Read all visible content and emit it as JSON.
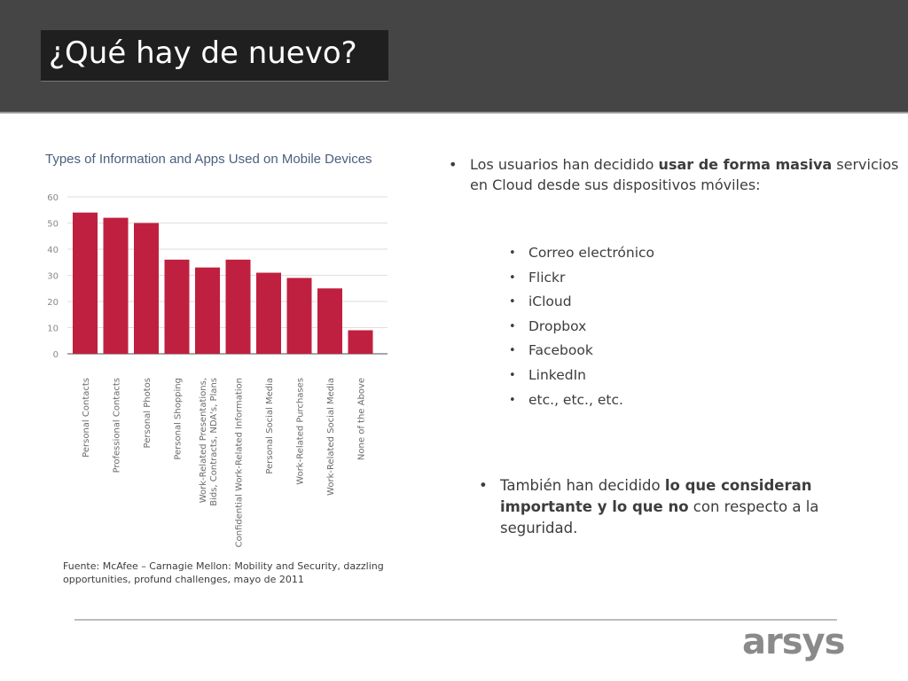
{
  "slide": {
    "title": "¿Qué hay de nuevo?"
  },
  "chart_data": {
    "type": "bar",
    "title": "Types of Information and Apps Used on Mobile Devices",
    "categories": [
      "Personal Contacts",
      "Professional Contacts",
      "Personal Photos",
      "Personal Shopping",
      "Work-Related Presentations,\nBids, Contracts, NDA's, Plans",
      "Confidential Work-Related Information",
      "Personal Social Media",
      "Work-Related Purchases",
      "Work-Related Social Media",
      "None of the Above"
    ],
    "values": [
      54,
      52,
      50,
      36,
      33,
      36,
      31,
      29,
      25,
      9
    ],
    "yticks": [
      0,
      10,
      20,
      30,
      40,
      50,
      60
    ],
    "ylim": [
      0,
      60
    ],
    "grid": true,
    "bar_color": "#c0203f"
  },
  "source": "Fuente: McAfee – Carnagie Mellon: Mobility and Security, dazzling opportunities, profund challenges, mayo de 2011",
  "bullet1": {
    "pre": "Los usuarios han decidido ",
    "bold": "usar de forma masiva",
    "post": " servicios en Cloud desde sus dispositivos móviles:"
  },
  "services": [
    "Correo electrónico",
    "Flickr",
    "iCloud",
    "Dropbox",
    "Facebook",
    "LinkedIn",
    "etc., etc., etc."
  ],
  "bullet2": {
    "pre": "También han decidido ",
    "bold": "lo que consideran importante y lo que no",
    "post": " con respecto a la seguridad."
  },
  "logo": "arsys"
}
